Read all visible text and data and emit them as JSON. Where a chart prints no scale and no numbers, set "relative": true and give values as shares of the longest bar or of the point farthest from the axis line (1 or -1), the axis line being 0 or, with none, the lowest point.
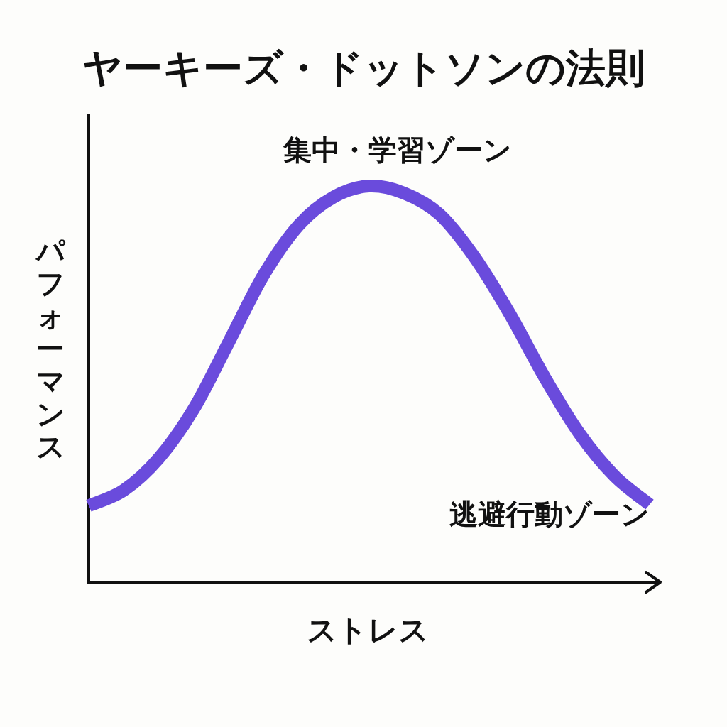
{
  "chart_data": {
    "type": "line",
    "title": "ヤーキーズ・ドットソンの法則",
    "xlabel": "ストレス",
    "ylabel": "パフォーマンス",
    "relative": true,
    "categories": [
      null,
      null,
      null,
      null,
      null,
      null,
      null,
      null,
      null,
      null,
      null,
      null,
      null,
      null,
      null,
      null,
      null
    ],
    "series": [
      {
        "color": "#6a4bdc",
        "values": [
          0.193,
          0.232,
          0.313,
          0.438,
          0.607,
          0.777,
          0.902,
          0.973,
          1,
          0.982,
          0.929,
          0.821,
          0.679,
          0.518,
          0.375,
          0.268,
          0.196
        ]
      }
    ],
    "annotations": [
      "集中・学習ゾーン",
      "逃避行動ゾーン"
    ]
  }
}
